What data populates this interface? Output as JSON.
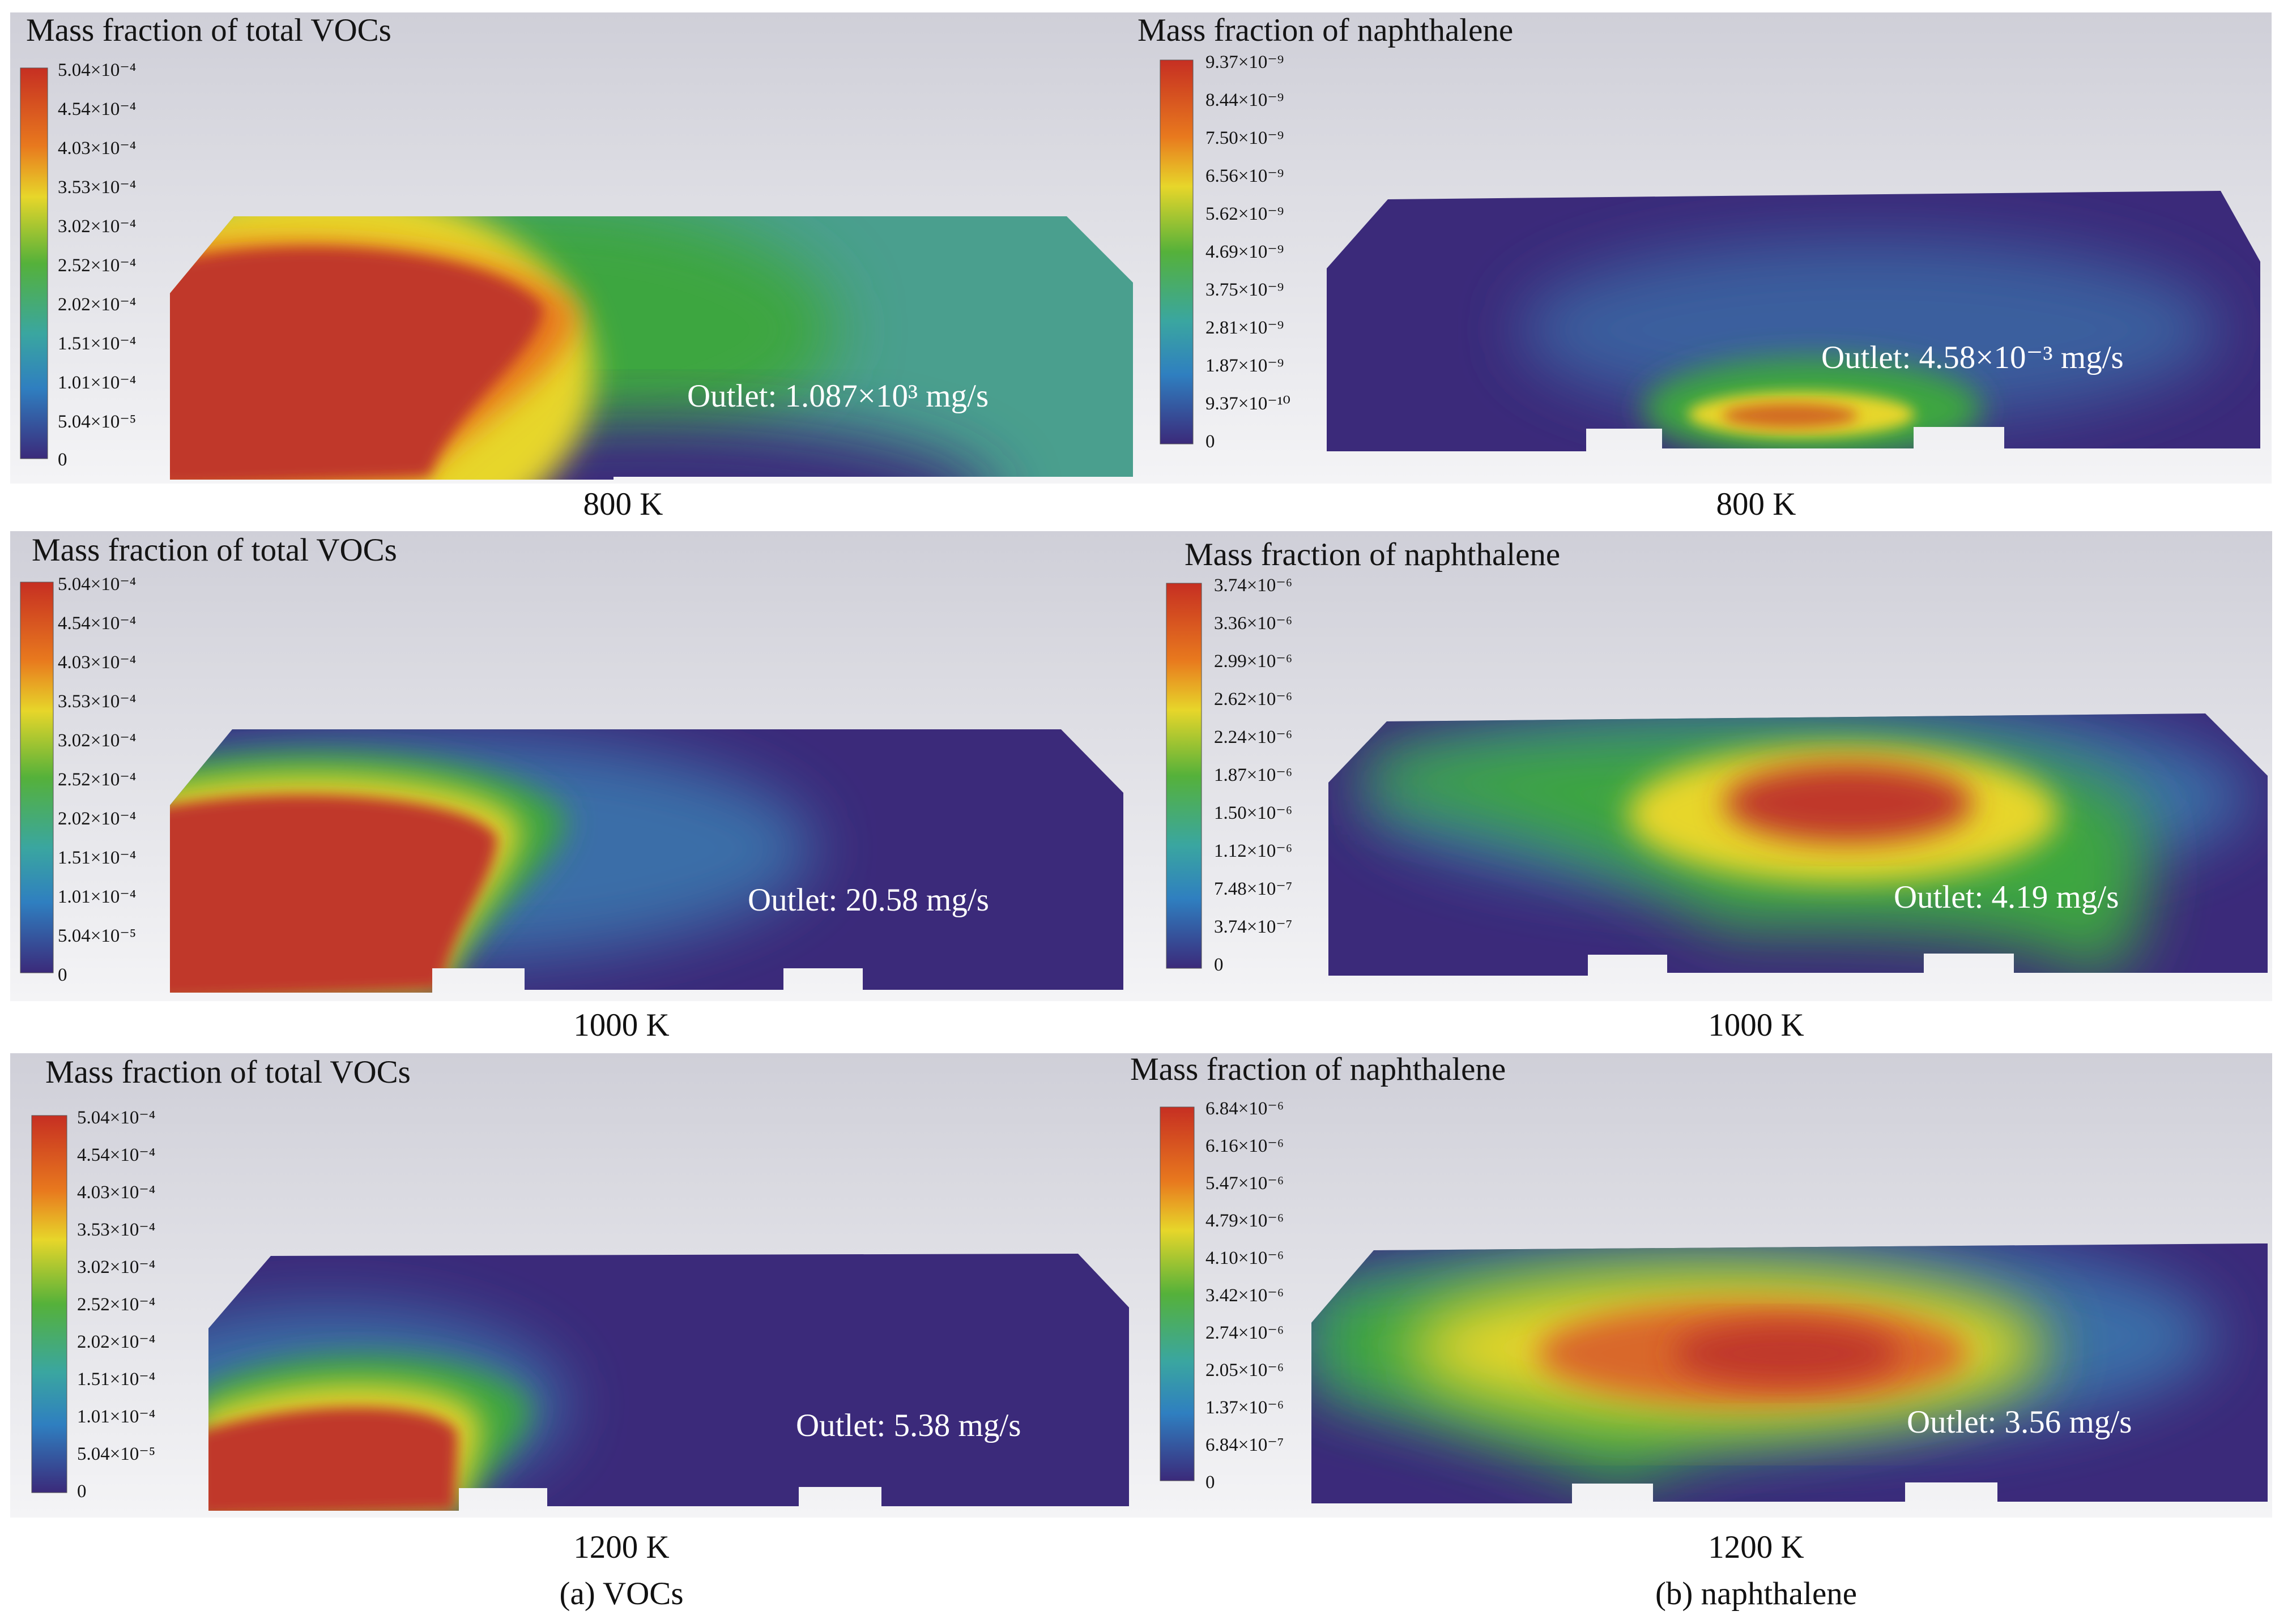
{
  "panels": [
    {
      "title": "Mass fraction of total VOCs",
      "temperature": "800 K",
      "legend": [
        "5.04×10⁻⁴",
        "4.54×10⁻⁴",
        "4.03×10⁻⁴",
        "3.53×10⁻⁴",
        "3.02×10⁻⁴",
        "2.52×10⁻⁴",
        "2.02×10⁻⁴",
        "1.51×10⁻⁴",
        "1.01×10⁻⁴",
        "5.04×10⁻⁵",
        "0"
      ],
      "outlet": "Outlet: 1.087×10³ mg/s"
    },
    {
      "title": "Mass fraction of naphthalene",
      "temperature": "800 K",
      "legend": [
        "9.37×10⁻⁹",
        "8.44×10⁻⁹",
        "7.50×10⁻⁹",
        "6.56×10⁻⁹",
        "5.62×10⁻⁹",
        "4.69×10⁻⁹",
        "3.75×10⁻⁹",
        "2.81×10⁻⁹",
        "1.87×10⁻⁹",
        "9.37×10⁻¹⁰",
        "0"
      ],
      "outlet": "Outlet: 4.58×10⁻³ mg/s"
    },
    {
      "title": "Mass fraction of total VOCs",
      "temperature": "1000 K",
      "legend": [
        "5.04×10⁻⁴",
        "4.54×10⁻⁴",
        "4.03×10⁻⁴",
        "3.53×10⁻⁴",
        "3.02×10⁻⁴",
        "2.52×10⁻⁴",
        "2.02×10⁻⁴",
        "1.51×10⁻⁴",
        "1.01×10⁻⁴",
        "5.04×10⁻⁵",
        "0"
      ],
      "outlet": "Outlet: 20.58 mg/s"
    },
    {
      "title": "Mass fraction of naphthalene",
      "temperature": "1000 K",
      "legend": [
        "3.74×10⁻⁶",
        "3.36×10⁻⁶",
        "2.99×10⁻⁶",
        "2.62×10⁻⁶",
        "2.24×10⁻⁶",
        "1.87×10⁻⁶",
        "1.50×10⁻⁶",
        "1.12×10⁻⁶",
        "7.48×10⁻⁷",
        "3.74×10⁻⁷",
        "0"
      ],
      "outlet": "Outlet: 4.19 mg/s"
    },
    {
      "title": "Mass fraction of total VOCs",
      "temperature": "1200 K",
      "legend": [
        "5.04×10⁻⁴",
        "4.54×10⁻⁴",
        "4.03×10⁻⁴",
        "3.53×10⁻⁴",
        "3.02×10⁻⁴",
        "2.52×10⁻⁴",
        "2.02×10⁻⁴",
        "1.51×10⁻⁴",
        "1.01×10⁻⁴",
        "5.04×10⁻⁵",
        "0"
      ],
      "outlet": "Outlet: 5.38 mg/s"
    },
    {
      "title": "Mass fraction of naphthalene",
      "temperature": "1200 K",
      "legend": [
        "6.84×10⁻⁶",
        "6.16×10⁻⁶",
        "5.47×10⁻⁶",
        "4.79×10⁻⁶",
        "4.10×10⁻⁶",
        "3.42×10⁻⁶",
        "2.74×10⁻⁶",
        "2.05×10⁻⁶",
        "1.37×10⁻⁶",
        "6.84×10⁻⁷",
        "0"
      ],
      "outlet": "Outlet: 3.56 mg/s"
    }
  ],
  "captions": {
    "left": "(a) VOCs",
    "right": "(b) naphthalene"
  },
  "colors": {
    "low": "#3b2a7a",
    "mid": "#3fa542",
    "high": "#c0392b",
    "background": "#dcdce2"
  }
}
